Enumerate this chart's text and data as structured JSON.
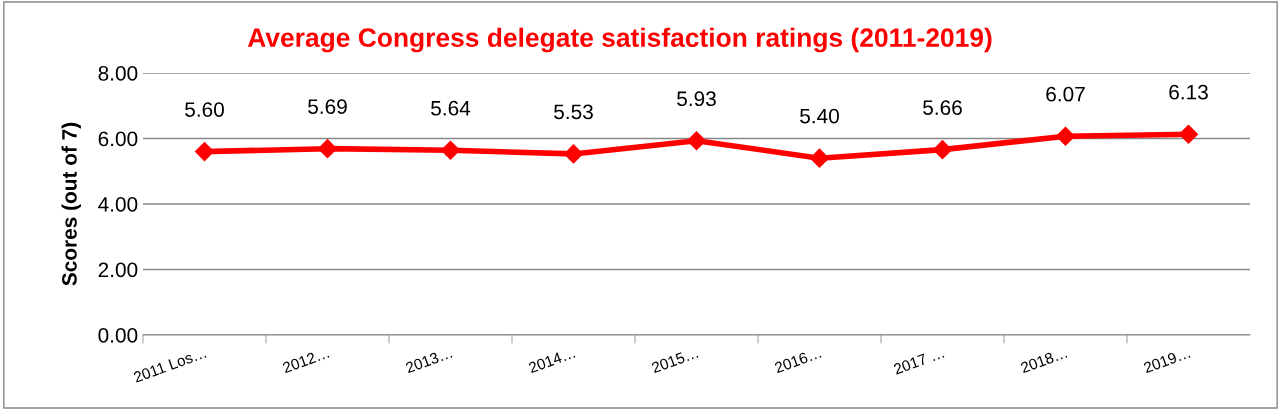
{
  "chart_data": {
    "type": "line",
    "title": "Average Congress delegate satisfaction ratings (2011-2019)",
    "ylabel": "Scores (out of 7)",
    "categories": [
      "2011 Los…",
      "2012…",
      "2013…",
      "2014…",
      "2015…",
      "2016…",
      "2017 …",
      "2018…",
      "2019…"
    ],
    "series": [
      {
        "color": "#ff0000",
        "values": [
          5.6,
          5.69,
          5.64,
          5.53,
          5.93,
          5.4,
          5.66,
          6.07,
          6.13
        ],
        "value_labels": [
          "5.60",
          "5.69",
          "5.64",
          "5.53",
          "5.93",
          "5.40",
          "5.66",
          "6.07",
          "6.13"
        ]
      }
    ],
    "ylim": [
      0,
      8
    ],
    "yticks": [
      {
        "value": 0,
        "label": "0.00"
      },
      {
        "value": 2,
        "label": "2.00"
      },
      {
        "value": 4,
        "label": "4.00"
      },
      {
        "value": 6,
        "label": "6.00"
      },
      {
        "value": 8,
        "label": "8.00"
      }
    ],
    "grid": "y",
    "legend": false,
    "marker": "diamond",
    "line_style": "solid"
  }
}
